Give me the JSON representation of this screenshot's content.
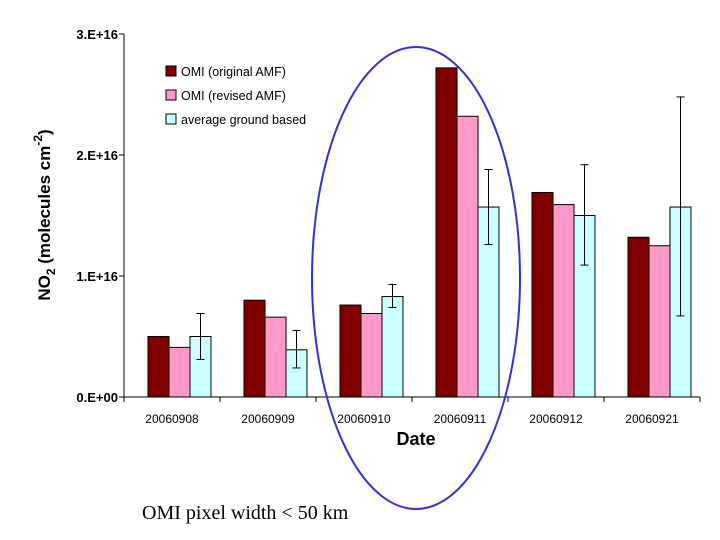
{
  "chart_data": {
    "type": "bar",
    "xlabel": "Date",
    "ylabel": {
      "main": "NO",
      "sub": "2",
      "rest": " (molecules cm",
      "sup": "-2",
      "close": ")"
    },
    "ylim": [
      0,
      3e+16
    ],
    "yticks": [
      {
        "value": 0,
        "label": "0.E+00"
      },
      {
        "value": 1e+16,
        "label": "1.E+16"
      },
      {
        "value": 2e+16,
        "label": "2.E+16"
      },
      {
        "value": 3e+16,
        "label": "3.E+16"
      }
    ],
    "categories": [
      "20060908",
      "20060909",
      "20060910",
      "20060911",
      "20060912",
      "20060921"
    ],
    "series": [
      {
        "name": "OMI (original AMF)",
        "color": "#800000",
        "values": [
          5000000000000000.0,
          8000000000000000.0,
          7600000000000000.0,
          2.72e+16,
          1.69e+16,
          1.32e+16
        ]
      },
      {
        "name": "OMI (revised AMF)",
        "color": "#ff99cc",
        "values": [
          4100000000000000.0,
          6600000000000000.0,
          6900000000000000.0,
          2.32e+16,
          1.59e+16,
          1.25e+16
        ]
      },
      {
        "name": "average ground based",
        "color": "#ccffff",
        "values": [
          5000000000000000.0,
          3900000000000000.0,
          8300000000000000.0,
          1.57e+16,
          1.5e+16,
          1.57e+16
        ],
        "err_low": [
          3100000000000000.0,
          2400000000000000.0,
          7400000000000000.0,
          1.26e+16,
          1.09e+16,
          6700000000000000.0
        ],
        "err_high": [
          6900000000000000.0,
          5500000000000000.0,
          9300000000000000.0,
          1.88e+16,
          1.92e+16,
          2.48e+16
        ]
      }
    ],
    "legend": "top-left",
    "grid": false,
    "annotation": "ellipse highlighting 20060910-20060911"
  },
  "caption": "OMI pixel width < 50 km"
}
